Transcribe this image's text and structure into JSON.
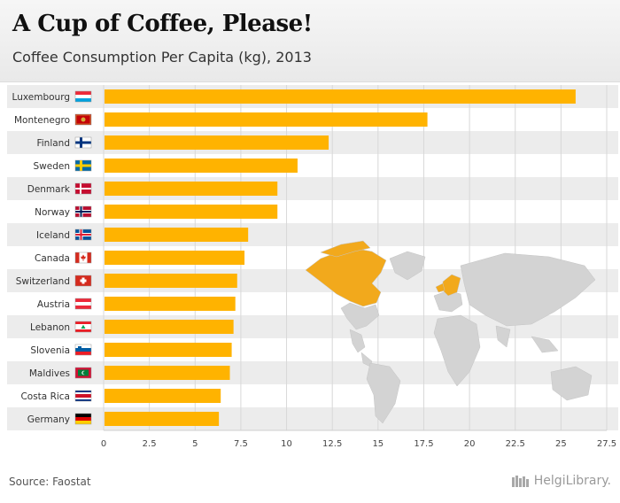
{
  "header": {
    "title": "A Cup of Coffee, Please!",
    "subtitle": "Coffee Consumption Per Capita (kg), 2013"
  },
  "footer": {
    "source": "Source: Faostat",
    "logo_text": "HelgiLibrary."
  },
  "colors": {
    "bar": "#ffb300",
    "map_land": "#d3d3d3",
    "map_highlight": "#f2a91c",
    "stripe": "#ececec",
    "grid": "#d8d8d8"
  },
  "chart_data": {
    "type": "bar",
    "orientation": "horizontal",
    "title": "A Cup of Coffee, Please!",
    "subtitle": "Coffee Consumption Per Capita (kg), 2013",
    "xlabel": "",
    "ylabel": "",
    "xlim": [
      0,
      27.5
    ],
    "grid": true,
    "x_ticks": [
      "0",
      "2.5",
      "5",
      "7.5",
      "10",
      "12.5",
      "15",
      "17.5",
      "20",
      "22.5",
      "25",
      "27.5"
    ],
    "categories": [
      "Luxembourg",
      "Montenegro",
      "Finland",
      "Sweden",
      "Denmark",
      "Norway",
      "Iceland",
      "Canada",
      "Switzerland",
      "Austria",
      "Lebanon",
      "Slovenia",
      "Maldives",
      "Costa Rica",
      "Germany"
    ],
    "values": [
      25.8,
      17.7,
      12.3,
      10.6,
      9.5,
      9.5,
      7.9,
      7.7,
      7.3,
      7.2,
      7.1,
      7.0,
      6.9,
      6.4,
      6.3
    ],
    "flags": [
      "luxembourg-flag",
      "montenegro-flag",
      "finland-flag",
      "sweden-flag",
      "denmark-flag",
      "norway-flag",
      "iceland-flag",
      "canada-flag",
      "switzerland-flag",
      "austria-flag",
      "lebanon-flag",
      "slovenia-flag",
      "maldives-flag",
      "costa-rica-flag",
      "germany-flag"
    ]
  }
}
